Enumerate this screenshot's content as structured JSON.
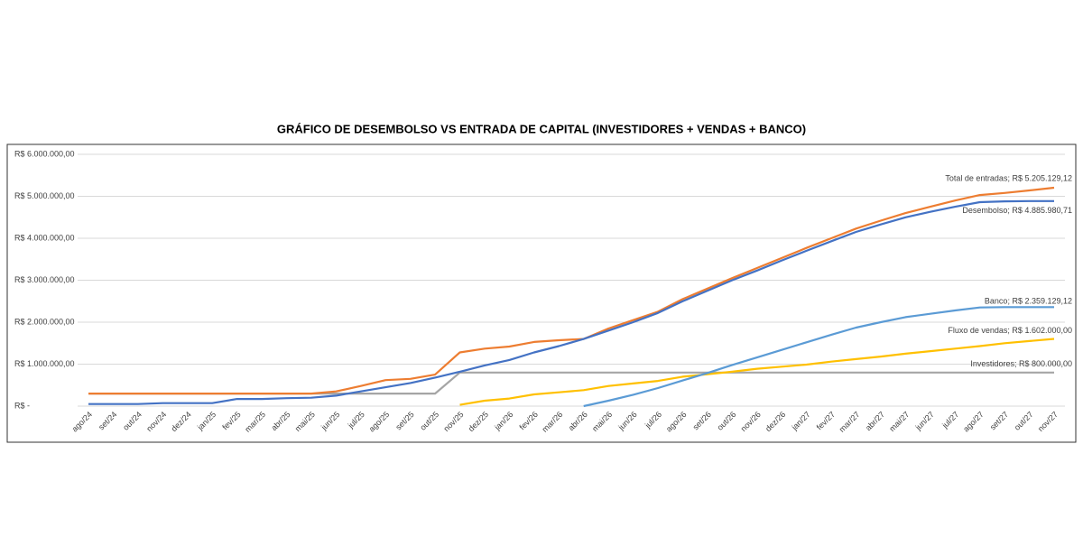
{
  "chart_data": {
    "type": "line",
    "title": "GRÁFICO DE DESEMBOLSO VS ENTRADA DE CAPITAL (INVESTIDORES + VENDAS + BANCO)",
    "categories": [
      "ago/24",
      "set/24",
      "out/24",
      "nov/24",
      "dez/24",
      "jan/25",
      "fev/25",
      "mar/25",
      "abr/25",
      "mai/25",
      "jun/25",
      "jul/25",
      "ago/25",
      "set/25",
      "out/25",
      "nov/25",
      "dez/25",
      "jan/26",
      "fev/26",
      "mar/26",
      "abr/26",
      "mai/26",
      "jun/26",
      "jul/26",
      "ago/26",
      "set/26",
      "out/26",
      "nov/26",
      "dez/26",
      "jan/27",
      "fev/27",
      "mar/27",
      "abr/27",
      "mai/27",
      "jun/27",
      "jul/27",
      "ago/27",
      "set/27",
      "out/27",
      "nov/27"
    ],
    "ylim": [
      0,
      6000000
    ],
    "yticks": [
      {
        "value": 0,
        "label": "R$ -"
      },
      {
        "value": 1000000,
        "label": "R$ 1.000.000,00"
      },
      {
        "value": 2000000,
        "label": "R$ 2.000.000,00"
      },
      {
        "value": 3000000,
        "label": "R$ 3.000.000,00"
      },
      {
        "value": 4000000,
        "label": "R$ 4.000.000,00"
      },
      {
        "value": 5000000,
        "label": "R$ 5.000.000,00"
      },
      {
        "value": 6000000,
        "label": "R$ 6.000.000,00"
      }
    ],
    "grid": true,
    "series": [
      {
        "name": "Investidores",
        "color": "#A5A5A5",
        "values": [
          300000,
          300000,
          300000,
          300000,
          300000,
          300000,
          300000,
          300000,
          300000,
          300000,
          300000,
          300000,
          300000,
          300000,
          300000,
          800000,
          800000,
          800000,
          800000,
          800000,
          800000,
          800000,
          800000,
          800000,
          800000,
          800000,
          800000,
          800000,
          800000,
          800000,
          800000,
          800000,
          800000,
          800000,
          800000,
          800000,
          800000,
          800000,
          800000,
          800000
        ],
        "value_labels": [
          null,
          null,
          null,
          null,
          null,
          null,
          null,
          null,
          null,
          null,
          null,
          null,
          null,
          null,
          null,
          null,
          null,
          null,
          null,
          null,
          null,
          null,
          null,
          null,
          null,
          null,
          null,
          null,
          null,
          null,
          null,
          null,
          null,
          null,
          null,
          null,
          null,
          null,
          null,
          "Investidores; R$ 800.000,00"
        ]
      },
      {
        "name": "Fluxo de vendas",
        "color": "#FFC000",
        "values": [
          null,
          null,
          null,
          null,
          null,
          null,
          null,
          null,
          null,
          null,
          null,
          null,
          null,
          null,
          null,
          30000,
          130000,
          180000,
          280000,
          330000,
          380000,
          480000,
          540000,
          600000,
          700000,
          760000,
          820000,
          890000,
          940000,
          990000,
          1060000,
          1120000,
          1180000,
          1250000,
          1310000,
          1370000,
          1430000,
          1500000,
          1550000,
          1602000
        ],
        "value_labels": [
          null,
          null,
          null,
          null,
          null,
          null,
          null,
          null,
          null,
          null,
          null,
          null,
          null,
          null,
          null,
          null,
          null,
          null,
          null,
          null,
          null,
          null,
          null,
          null,
          null,
          null,
          null,
          null,
          null,
          null,
          null,
          null,
          null,
          null,
          null,
          null,
          null,
          null,
          null,
          "Fluxo de vendas; R$ 1.602.000,00"
        ]
      },
      {
        "name": "Banco",
        "color": "#5B9BD5",
        "values": [
          null,
          null,
          null,
          null,
          null,
          null,
          null,
          null,
          null,
          null,
          null,
          null,
          null,
          null,
          null,
          null,
          null,
          null,
          null,
          null,
          0,
          130000,
          270000,
          430000,
          610000,
          790000,
          980000,
          1160000,
          1340000,
          1520000,
          1700000,
          1870000,
          2000000,
          2120000,
          2200000,
          2280000,
          2350000,
          2359000,
          2359000,
          2359129.12
        ],
        "value_labels": [
          null,
          null,
          null,
          null,
          null,
          null,
          null,
          null,
          null,
          null,
          null,
          null,
          null,
          null,
          null,
          null,
          null,
          null,
          null,
          null,
          null,
          null,
          null,
          null,
          null,
          null,
          null,
          null,
          null,
          null,
          null,
          null,
          null,
          null,
          null,
          null,
          null,
          null,
          null,
          "Banco; R$ 2.359.129,12"
        ]
      },
      {
        "name": "Total de entradas",
        "color": "#ED7D31",
        "values": [
          300000,
          300000,
          300000,
          300000,
          300000,
          300000,
          300000,
          300000,
          300000,
          300000,
          350000,
          480000,
          620000,
          650000,
          750000,
          1280000,
          1370000,
          1420000,
          1530000,
          1570000,
          1600000,
          1850000,
          2050000,
          2250000,
          2550000,
          2800000,
          3050000,
          3290000,
          3530000,
          3770000,
          4000000,
          4230000,
          4420000,
          4600000,
          4750000,
          4900000,
          5030000,
          5080000,
          5140000,
          5205129.12
        ],
        "value_labels": [
          null,
          null,
          null,
          null,
          null,
          null,
          null,
          null,
          null,
          null,
          null,
          null,
          null,
          null,
          null,
          null,
          null,
          null,
          null,
          null,
          null,
          null,
          null,
          null,
          null,
          null,
          null,
          null,
          null,
          null,
          null,
          null,
          null,
          null,
          null,
          null,
          null,
          null,
          null,
          "Total de entradas; R$ 5.205.129,12"
        ]
      },
      {
        "name": "Desembolso",
        "color": "#4472C4",
        "values": [
          50000,
          50000,
          50000,
          70000,
          70000,
          70000,
          170000,
          170000,
          190000,
          200000,
          250000,
          350000,
          450000,
          550000,
          680000,
          820000,
          970000,
          1100000,
          1280000,
          1430000,
          1600000,
          1800000,
          2000000,
          2220000,
          2500000,
          2750000,
          3000000,
          3230000,
          3470000,
          3700000,
          3930000,
          4150000,
          4330000,
          4500000,
          4630000,
          4750000,
          4860000,
          4880000,
          4885000,
          4885980.71
        ],
        "value_labels": [
          null,
          null,
          null,
          null,
          null,
          null,
          null,
          null,
          null,
          null,
          null,
          null,
          null,
          null,
          null,
          null,
          null,
          null,
          null,
          null,
          null,
          null,
          null,
          null,
          null,
          null,
          null,
          null,
          null,
          null,
          null,
          null,
          null,
          null,
          null,
          null,
          null,
          null,
          null,
          "Desembolso; R$ 4.885.980,71"
        ]
      }
    ]
  }
}
